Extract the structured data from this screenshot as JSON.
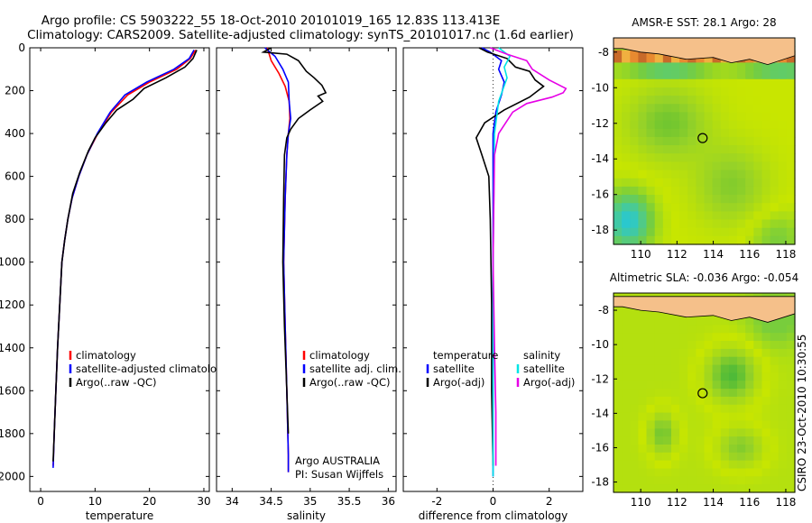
{
  "header": {
    "line1": "Argo profile: CS 5903222_55 18-Oct-2010 20101019_165 12.83S 113.413E",
    "line2": "Climatology: CARS2009. Satellite-adjusted climatology: synTS_20101017.nc (1.6d earlier)"
  },
  "side_label": "CSIRO 23-Oct-2010 10:30:55",
  "colors": {
    "clim": "#ff0000",
    "sat": "#0000ff",
    "argo": "#000000",
    "salsat": "#00e5e5",
    "salargo": "#e600e6",
    "land": "#f5c08a",
    "sea_high": "#7ec843",
    "sea_mid": "#c8e600",
    "sea_low": "#19c8c8"
  },
  "chart_data": [
    {
      "type": "line",
      "name": "temperature",
      "xlabel": "temperature",
      "ylabel": "",
      "xlim": [
        -2,
        31
      ],
      "ylim": [
        2070,
        0
      ],
      "xticks": [
        "0",
        "10",
        "20",
        "30"
      ],
      "xtick_values": [
        0,
        10,
        20,
        30
      ],
      "yticks": [
        "0",
        "200",
        "400",
        "600",
        "800",
        "1000",
        "1200",
        "1400",
        "1600",
        "1800",
        "2000"
      ],
      "ytick_values": [
        0,
        200,
        400,
        600,
        800,
        1000,
        1200,
        1400,
        1600,
        1800,
        2000
      ],
      "legend": [
        "climatology",
        "satellite-adjusted climatology",
        "Argo(..raw -QC)"
      ],
      "series": [
        {
          "name": "climatology",
          "color": "clim",
          "points": [
            [
              28.5,
              10
            ],
            [
              27.5,
              50
            ],
            [
              25,
              100
            ],
            [
              20,
              160
            ],
            [
              16,
              220
            ],
            [
              13,
              300
            ],
            [
              10.5,
              400
            ],
            [
              8.5,
              500
            ],
            [
              7,
              600
            ],
            [
              5.8,
              700
            ],
            [
              5,
              800
            ],
            [
              4.4,
              900
            ],
            [
              3.9,
              1000
            ],
            [
              3.5,
              1200
            ],
            [
              3.1,
              1400
            ],
            [
              2.8,
              1600
            ],
            [
              2.5,
              1800
            ],
            [
              2.3,
              1950
            ]
          ]
        },
        {
          "name": "satellite",
          "color": "sat",
          "points": [
            [
              28.2,
              10
            ],
            [
              27.3,
              50
            ],
            [
              24.5,
              100
            ],
            [
              19.5,
              160
            ],
            [
              15.5,
              220
            ],
            [
              12.8,
              300
            ],
            [
              10.4,
              400
            ],
            [
              8.5,
              500
            ],
            [
              7,
              600
            ],
            [
              5.8,
              700
            ],
            [
              5,
              800
            ],
            [
              4.4,
              900
            ],
            [
              3.9,
              1000
            ],
            [
              3.5,
              1200
            ],
            [
              3.1,
              1400
            ],
            [
              2.8,
              1600
            ],
            [
              2.5,
              1800
            ],
            [
              2.3,
              1960
            ]
          ]
        },
        {
          "name": "argo",
          "color": "argo",
          "points": [
            [
              28.7,
              10
            ],
            [
              28,
              50
            ],
            [
              26.5,
              90
            ],
            [
              23,
              140
            ],
            [
              19,
              190
            ],
            [
              17,
              240
            ],
            [
              14,
              290
            ],
            [
              12,
              350
            ],
            [
              10,
              420
            ],
            [
              8.8,
              480
            ],
            [
              7.2,
              580
            ],
            [
              5.9,
              680
            ],
            [
              5,
              800
            ],
            [
              4.4,
              900
            ],
            [
              3.9,
              1000
            ],
            [
              3.5,
              1200
            ],
            [
              3.1,
              1400
            ],
            [
              2.8,
              1600
            ],
            [
              2.5,
              1800
            ],
            [
              2.3,
              1930
            ]
          ]
        }
      ]
    },
    {
      "type": "line",
      "name": "salinity",
      "xlabel": "salinity",
      "xlim": [
        33.8,
        36.1
      ],
      "ylim": [
        2070,
        0
      ],
      "xticks": [
        "34",
        "34.5",
        "35",
        "35.5",
        "36"
      ],
      "xtick_values": [
        34,
        34.5,
        35,
        35.5,
        36
      ],
      "legend": [
        "climatology",
        "satellite adj. clim.",
        "Argo(..raw -QC)"
      ],
      "annotations": [
        "Argo AUSTRALIA",
        "PI: Susan Wijffels"
      ],
      "series": [
        {
          "name": "climatology",
          "color": "clim",
          "points": [
            [
              34.45,
              0
            ],
            [
              34.5,
              60
            ],
            [
              34.6,
              120
            ],
            [
              34.68,
              180
            ],
            [
              34.73,
              250
            ],
            [
              34.74,
              330
            ],
            [
              34.72,
              400
            ],
            [
              34.7,
              500
            ],
            [
              34.68,
              700
            ],
            [
              34.66,
              1000
            ],
            [
              34.68,
              1300
            ],
            [
              34.7,
              1600
            ],
            [
              34.72,
              1900
            ],
            [
              34.72,
              1980
            ]
          ]
        },
        {
          "name": "satellite",
          "color": "sat",
          "points": [
            [
              34.42,
              0
            ],
            [
              34.55,
              40
            ],
            [
              34.65,
              100
            ],
            [
              34.72,
              160
            ],
            [
              34.73,
              250
            ],
            [
              34.75,
              330
            ],
            [
              34.72,
              400
            ],
            [
              34.7,
              500
            ],
            [
              34.68,
              700
            ],
            [
              34.66,
              1000
            ],
            [
              34.68,
              1300
            ],
            [
              34.7,
              1600
            ],
            [
              34.72,
              1900
            ],
            [
              34.72,
              1980
            ]
          ]
        },
        {
          "name": "argo",
          "color": "argo",
          "points": [
            [
              34.5,
              0
            ],
            [
              34.4,
              20
            ],
            [
              34.7,
              30
            ],
            [
              34.85,
              60
            ],
            [
              34.95,
              110
            ],
            [
              35.05,
              140
            ],
            [
              35.15,
              175
            ],
            [
              35.2,
              210
            ],
            [
              35.1,
              225
            ],
            [
              35.16,
              250
            ],
            [
              35.0,
              290
            ],
            [
              34.85,
              330
            ],
            [
              34.75,
              380
            ],
            [
              34.7,
              420
            ],
            [
              34.67,
              500
            ],
            [
              34.66,
              700
            ],
            [
              34.65,
              1000
            ],
            [
              34.67,
              1300
            ],
            [
              34.7,
              1600
            ],
            [
              34.72,
              1800
            ]
          ]
        }
      ]
    },
    {
      "type": "line",
      "name": "difference",
      "xlabel": "difference from climatology",
      "xlim": [
        -3.2,
        3.2
      ],
      "ylim": [
        2070,
        0
      ],
      "xticks": [
        "-2",
        "0",
        "2"
      ],
      "xtick_values": [
        -2,
        0,
        2
      ],
      "legend_left": [
        "temperature",
        "satellite",
        "Argo(-adj)"
      ],
      "legend_right": [
        "salinity",
        "satellite",
        "Argo(-adj)"
      ],
      "series": [
        {
          "name": "temp-sat",
          "color": "sat",
          "points": [
            [
              -0.4,
              0
            ],
            [
              -0.1,
              20
            ],
            [
              0.3,
              60
            ],
            [
              0.2,
              100
            ],
            [
              0.4,
              160
            ],
            [
              0.3,
              220
            ],
            [
              0.1,
              300
            ],
            [
              0,
              400
            ],
            [
              0,
              2000
            ]
          ]
        },
        {
          "name": "temp-argo",
          "color": "argo",
          "points": [
            [
              -0.5,
              0
            ],
            [
              -0.2,
              20
            ],
            [
              0.5,
              50
            ],
            [
              0.8,
              90
            ],
            [
              1.3,
              110
            ],
            [
              1.5,
              150
            ],
            [
              1.8,
              180
            ],
            [
              1.3,
              230
            ],
            [
              0.4,
              290
            ],
            [
              -0.3,
              350
            ],
            [
              -0.6,
              420
            ],
            [
              -0.4,
              500
            ],
            [
              -0.15,
              600
            ],
            [
              -0.1,
              800
            ],
            [
              -0.05,
              1200
            ],
            [
              -0.05,
              1600
            ],
            [
              0,
              1950
            ]
          ]
        },
        {
          "name": "sal-sat",
          "color": "salsat",
          "points": [
            [
              0.2,
              0
            ],
            [
              0.6,
              40
            ],
            [
              0.4,
              90
            ],
            [
              0.5,
              140
            ],
            [
              0.2,
              250
            ],
            [
              0.05,
              400
            ],
            [
              0,
              1000
            ],
            [
              0,
              2000
            ]
          ]
        },
        {
          "name": "sal-argo",
          "color": "salargo",
          "points": [
            [
              -0.1,
              0
            ],
            [
              0.5,
              30
            ],
            [
              1.2,
              60
            ],
            [
              1.4,
              100
            ],
            [
              2.0,
              150
            ],
            [
              2.6,
              190
            ],
            [
              2.5,
              210
            ],
            [
              2.1,
              230
            ],
            [
              1.2,
              260
            ],
            [
              0.7,
              300
            ],
            [
              0.2,
              400
            ],
            [
              0.05,
              500
            ],
            [
              0,
              1000
            ],
            [
              0.05,
              1400
            ],
            [
              0.1,
              1700
            ],
            [
              0.1,
              1950
            ]
          ]
        }
      ]
    },
    {
      "type": "heatmap",
      "name": "sst-map",
      "title": "AMSR-E SST: 28.1 Argo: 28",
      "xlim": [
        108.5,
        118.5
      ],
      "ylim": [
        -18.8,
        -7.2
      ],
      "xticks": [
        "110",
        "112",
        "114",
        "116",
        "118"
      ],
      "xtick_values": [
        110,
        112,
        114,
        116,
        118
      ],
      "yticks": [
        "-8",
        "-10",
        "-12",
        "-14",
        "-16",
        "-18"
      ],
      "ytick_values": [
        -8,
        -10,
        -12,
        -14,
        -16,
        -18
      ],
      "marker": [
        113.413,
        -12.83
      ]
    },
    {
      "type": "heatmap",
      "name": "sla-map",
      "title": "Altimetric SLA: -0.036 Argo: -0.054",
      "xlim": [
        108.5,
        118.5
      ],
      "ylim": [
        -18.6,
        -7.0
      ],
      "xticks": [
        "110",
        "112",
        "114",
        "116",
        "118"
      ],
      "xtick_values": [
        110,
        112,
        114,
        116,
        118
      ],
      "yticks": [
        "-8",
        "-10",
        "-12",
        "-14",
        "-16",
        "-18"
      ],
      "ytick_values": [
        -8,
        -10,
        -12,
        -14,
        -16,
        -18
      ],
      "marker": [
        113.413,
        -12.83
      ]
    }
  ]
}
